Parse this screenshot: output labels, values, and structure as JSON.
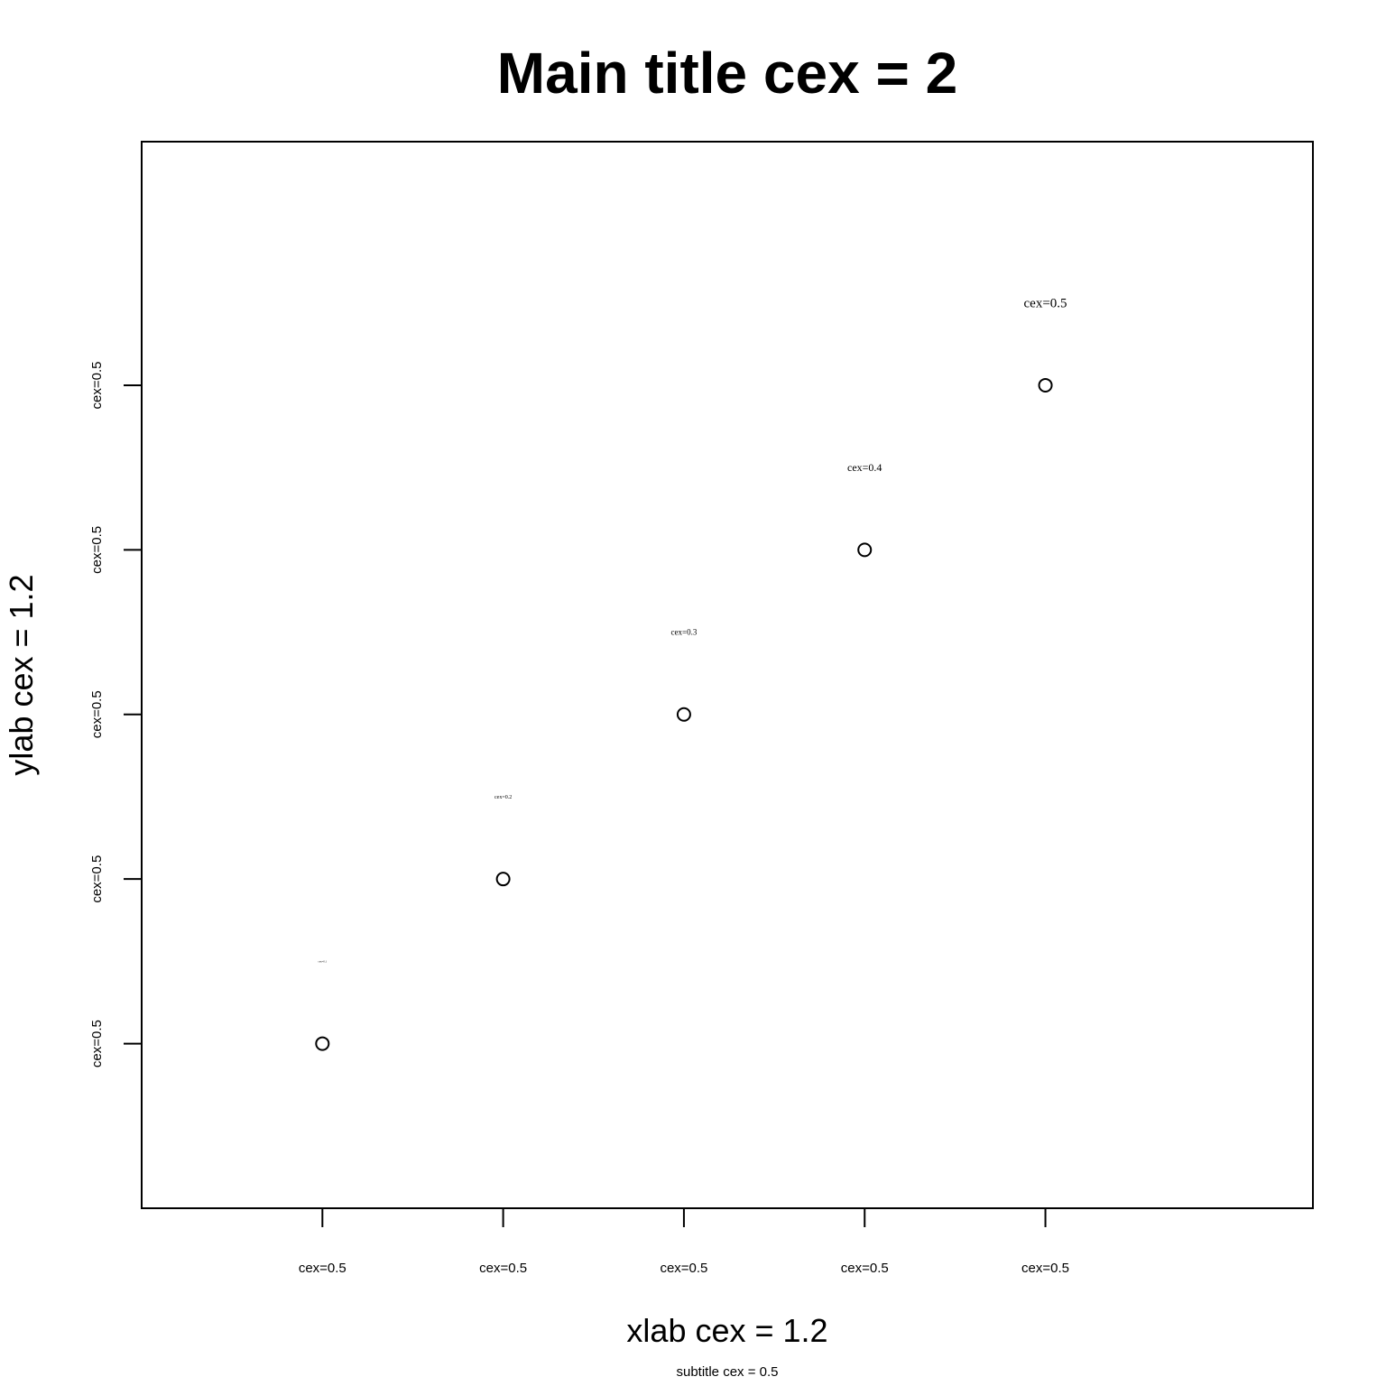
{
  "chart_data": {
    "type": "scatter",
    "title": "Main title cex = 2",
    "subtitle": "subtitle cex = 0.5",
    "xlabel": "xlab cex = 1.2",
    "ylabel": "ylab cex = 1.2",
    "xlim": [
      0,
      6.48
    ],
    "ylim": [
      0,
      6.48
    ],
    "x_ticks": [
      1,
      2,
      3,
      4,
      5
    ],
    "x_tick_labels": [
      "cex=0.5",
      "cex=0.5",
      "cex=0.5",
      "cex=0.5",
      "cex=0.5"
    ],
    "y_ticks": [
      1,
      2,
      3,
      4,
      5
    ],
    "y_tick_labels": [
      "cex=0.5",
      "cex=0.5",
      "cex=0.5",
      "cex=0.5",
      "cex=0.5"
    ],
    "grid": false,
    "marker": "open-circle",
    "points": [
      {
        "x": 1,
        "y": 1
      },
      {
        "x": 2,
        "y": 2
      },
      {
        "x": 3,
        "y": 3
      },
      {
        "x": 4,
        "y": 4
      },
      {
        "x": 5,
        "y": 5
      }
    ],
    "annotations": [
      {
        "x": 1,
        "y": 1.5,
        "text": "cex=0.1",
        "cex": 0.1
      },
      {
        "x": 2,
        "y": 2.5,
        "text": "cex=0.2",
        "cex": 0.2
      },
      {
        "x": 3,
        "y": 3.5,
        "text": "cex=0.3",
        "cex": 0.3
      },
      {
        "x": 4,
        "y": 4.5,
        "text": "cex=0.4",
        "cex": 0.4
      },
      {
        "x": 5,
        "y": 5.5,
        "text": "cex=0.5",
        "cex": 0.5
      }
    ]
  }
}
